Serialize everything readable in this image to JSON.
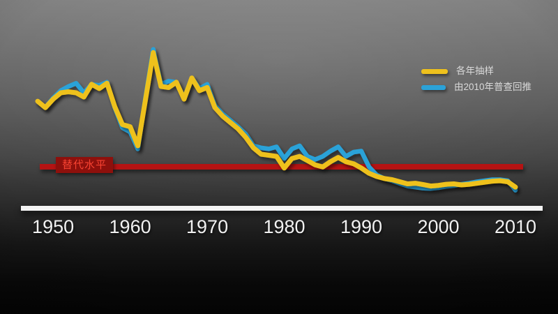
{
  "legend": {
    "items": [
      {
        "label": "各年抽样",
        "color": "#eec11d",
        "swatch_width": 38
      },
      {
        "label": "由2010年普查回推",
        "color": "#2ba2d8",
        "swatch_width": 35
      }
    ]
  },
  "annotations": {
    "replacement_label": "替代水平",
    "replacement_label_color": "#f84332",
    "replacement_label_bg": "#8e100c"
  },
  "x_axis": {
    "ticks": [
      "1950",
      "1960",
      "1970",
      "1980",
      "1990",
      "2000",
      "2010"
    ]
  },
  "chart_data": {
    "type": "line",
    "title": "",
    "x": [
      1948,
      1949,
      1950,
      1951,
      1952,
      1953,
      1954,
      1955,
      1956,
      1957,
      1958,
      1959,
      1960,
      1961,
      1962,
      1963,
      1964,
      1965,
      1966,
      1967,
      1968,
      1969,
      1970,
      1971,
      1972,
      1973,
      1974,
      1975,
      1976,
      1977,
      1978,
      1979,
      1980,
      1981,
      1982,
      1983,
      1984,
      1985,
      1986,
      1987,
      1988,
      1989,
      1990,
      1991,
      1992,
      1993,
      1994,
      1995,
      1996,
      1997,
      1998,
      1999,
      2000,
      2001,
      2002,
      2003,
      2004,
      2005,
      2006,
      2007,
      2008,
      2009,
      2010
    ],
    "series": [
      {
        "name": "各年抽样",
        "color": "#eec11d",
        "values": [
          5.2,
          4.9,
          5.3,
          5.6,
          5.65,
          5.6,
          5.4,
          6.0,
          5.8,
          6.05,
          4.95,
          4.1,
          4.0,
          3.1,
          5.3,
          7.5,
          5.9,
          5.85,
          6.1,
          5.3,
          6.3,
          5.7,
          5.85,
          4.9,
          4.5,
          4.2,
          3.9,
          3.5,
          3.0,
          2.7,
          2.65,
          2.6,
          2.05,
          2.5,
          2.6,
          2.4,
          2.2,
          2.1,
          2.35,
          2.55,
          2.35,
          2.25,
          2.05,
          1.8,
          1.65,
          1.55,
          1.5,
          1.4,
          1.3,
          1.33,
          1.27,
          1.2,
          1.23,
          1.28,
          1.3,
          1.25,
          1.28,
          1.33,
          1.38,
          1.43,
          1.45,
          1.4,
          1.15
        ]
      },
      {
        "name": "由2010年普查回推",
        "color": "#2ba2d8",
        "values": [
          5.2,
          4.9,
          5.35,
          5.7,
          5.9,
          6.05,
          5.6,
          6.0,
          5.95,
          6.1,
          4.9,
          3.95,
          3.75,
          2.95,
          5.4,
          7.65,
          6.0,
          6.15,
          6.1,
          5.35,
          6.3,
          5.8,
          6.0,
          5.0,
          4.6,
          4.3,
          4.0,
          3.65,
          3.1,
          3.0,
          2.95,
          3.05,
          2.5,
          2.95,
          3.1,
          2.6,
          2.45,
          2.6,
          2.85,
          3.05,
          2.6,
          2.8,
          2.85,
          2.1,
          1.72,
          1.55,
          1.45,
          1.32,
          1.2,
          1.15,
          1.1,
          1.08,
          1.12,
          1.18,
          1.22,
          1.28,
          1.33,
          1.4,
          1.45,
          1.5,
          1.5,
          1.45,
          1.0
        ]
      }
    ],
    "reference_line": {
      "label": "替代水平",
      "value": 2.1,
      "color": "#b51313"
    },
    "x_ticks": [
      1950,
      1960,
      1970,
      1980,
      1990,
      2000,
      2010
    ],
    "xlim": [
      1948,
      2010
    ],
    "ylim": [
      0,
      8.3
    ],
    "grid": false,
    "legend_position": "top-right",
    "y_axis_visible": false
  }
}
